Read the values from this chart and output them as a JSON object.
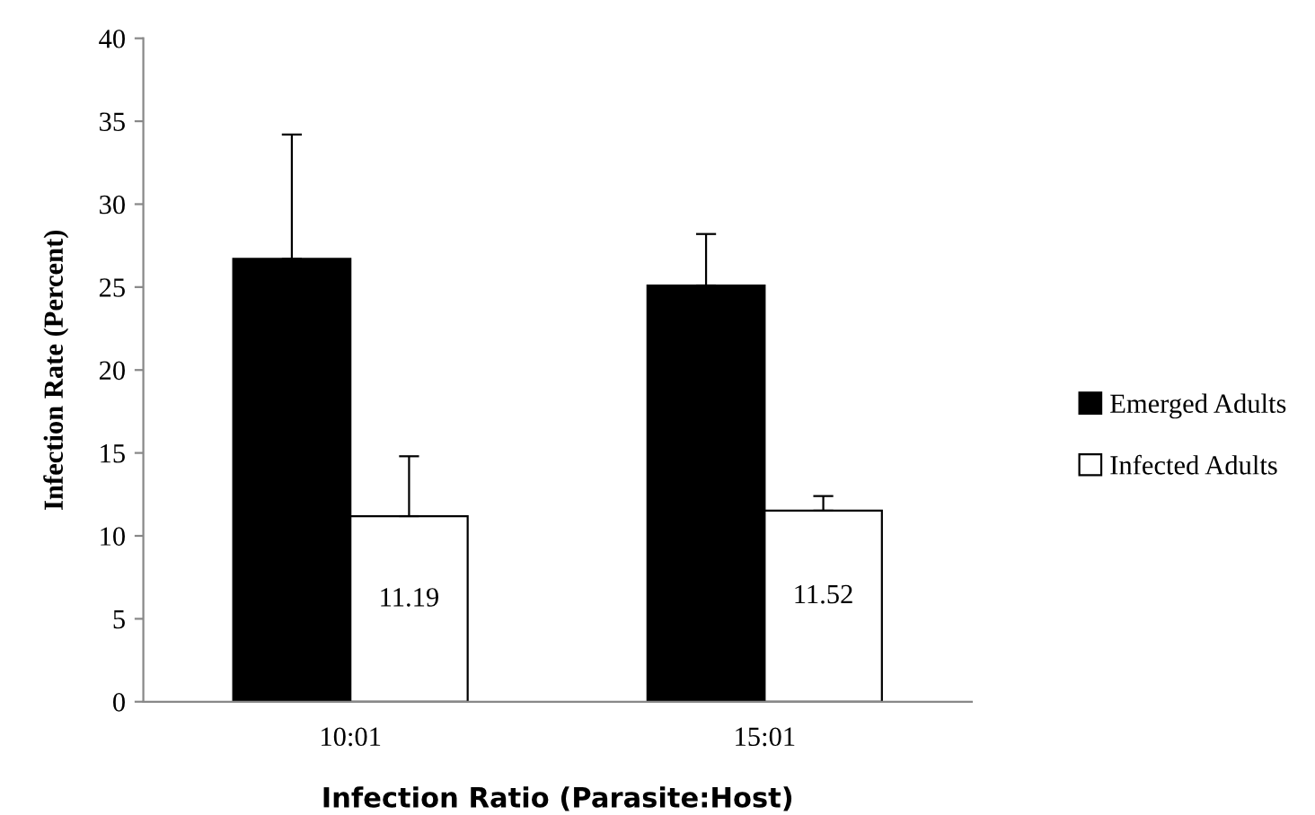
{
  "chart_data": {
    "type": "bar",
    "xlabel": "Infection Ratio (Parasite:Host)",
    "ylabel": "Infection Rate (Percent)",
    "categories": [
      "10:01",
      "15:01"
    ],
    "series": [
      {
        "name": "Emerged Adults",
        "color": "#000000",
        "values": [
          26.7,
          25.1
        ],
        "errors": [
          [
            26.7,
            34.2
          ],
          [
            25.1,
            28.2
          ]
        ]
      },
      {
        "name": "Infected Adults",
        "color": "#ffffff",
        "values": [
          11.19,
          11.52
        ],
        "errors": [
          [
            11.19,
            14.8
          ],
          [
            11.52,
            12.4
          ]
        ],
        "value_labels": [
          "11.19",
          "11.52"
        ]
      }
    ],
    "ylim": [
      0,
      40
    ],
    "yticks": [
      0,
      5,
      10,
      15,
      20,
      25,
      30,
      35,
      40
    ],
    "grid": false,
    "legend": "right"
  }
}
